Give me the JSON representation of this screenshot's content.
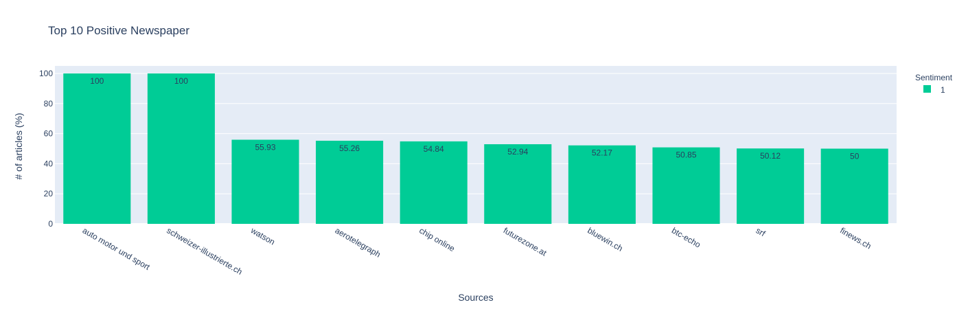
{
  "chart_data": {
    "type": "bar",
    "title": "Top 10 Positive Newspaper",
    "xlabel": "Sources",
    "ylabel": "# of articles (%)",
    "categories": [
      "auto motor und sport",
      "schweizer-illustrierte.ch",
      "watson",
      "aerotelegraph",
      "chip online",
      "futurezone.at",
      "bluewin.ch",
      "btc-echo",
      "srf",
      "finews.ch"
    ],
    "series": [
      {
        "name": "1",
        "values": [
          100,
          100,
          55.93,
          55.26,
          54.84,
          52.94,
          52.17,
          50.85,
          50.12,
          50
        ],
        "labels": [
          "100",
          "100",
          "55.93",
          "55.26",
          "54.84",
          "52.94",
          "52.17",
          "50.85",
          "50.12",
          "50"
        ],
        "color": "#00cc96"
      }
    ],
    "ylim": [
      0,
      105
    ],
    "yticks": [
      0,
      20,
      40,
      60,
      80,
      100
    ],
    "grid": true,
    "legend": {
      "title": "Sentiment",
      "position": "top-right"
    },
    "colors": {
      "plot_bg": "#e5ecf6",
      "grid": "#ffffff",
      "text": "#2a3f5f"
    }
  }
}
